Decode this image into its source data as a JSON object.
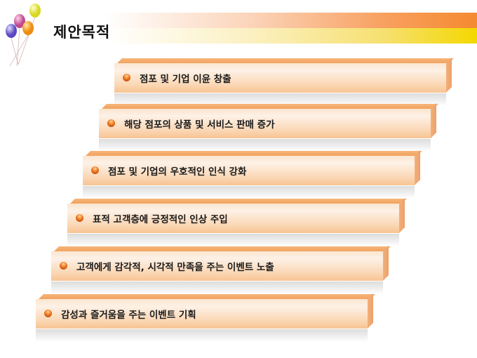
{
  "slide": {
    "title": "제안목적",
    "colors": {
      "accent_orange": "#f58a30",
      "accent_yellow": "#f3d800",
      "bar": "#f7c493"
    },
    "steps": [
      {
        "label": "점포 및 기업 이윤 창출"
      },
      {
        "label": "해당 점포의 상품 및 서비스 판매 증가"
      },
      {
        "label": "점포 및 기업의 우호적인 인식 강화"
      },
      {
        "label": "표적 고객층에 긍정적인 인상 주입"
      },
      {
        "label": "고객에게 감각적, 시각적 만족을 주는 이벤트 노출"
      },
      {
        "label": "감성과 즐거움을 주는 이벤트 기획"
      }
    ]
  }
}
